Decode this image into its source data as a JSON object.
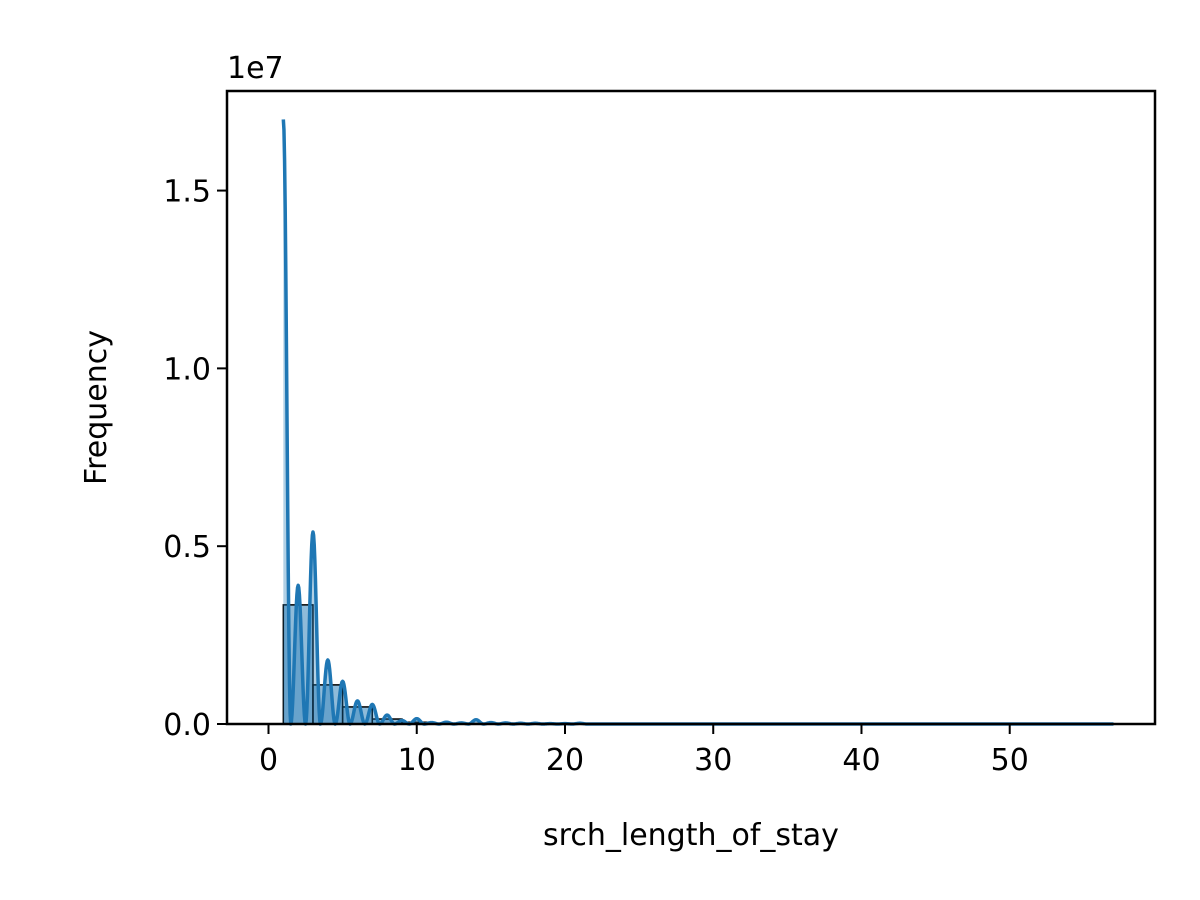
{
  "chart_data": {
    "type": "bar",
    "title": "",
    "xlabel": "srch_length_of_stay",
    "ylabel": "Frequency",
    "y_offset_text": "1e7",
    "xlim": [
      -2.8,
      59.8
    ],
    "ylim": [
      0,
      1.78
    ],
    "y_scale_factor": 10000000,
    "x_ticks": [
      0,
      10,
      20,
      30,
      40,
      50
    ],
    "x_tick_labels": [
      "0",
      "10",
      "20",
      "30",
      "40",
      "50"
    ],
    "y_ticks": [
      0.0,
      0.5,
      1.0,
      1.5
    ],
    "y_tick_labels": [
      "0.0",
      "0.5",
      "1.0",
      "1.5"
    ],
    "grid": false,
    "legend": "none",
    "colors": {
      "bar_fill": "#1f77b4",
      "bar_edge": "#000000",
      "kde_line": "#1f77b4"
    },
    "histogram": {
      "bin_edges": [
        1,
        3,
        5,
        7,
        9,
        11,
        13,
        15,
        17,
        19,
        21,
        23,
        25,
        27,
        29,
        31,
        33,
        35,
        37,
        39,
        41,
        43,
        45,
        47,
        49,
        51,
        53,
        55,
        57
      ],
      "values": [
        0.335,
        0.11,
        0.048,
        0.014,
        0.005,
        0.002,
        0.0015,
        0.001,
        0.0008,
        0.0006,
        0.0005,
        0.0004,
        0.0003,
        0.0003,
        0.0002,
        0.0002,
        0.0002,
        0.0002,
        0.0001,
        0.0001,
        0.0001,
        0.0001,
        0.0001,
        0.0001,
        0.0001,
        0.0001,
        0.0001,
        0.0001
      ]
    },
    "kde_peaks": {
      "x": [
        1,
        2,
        3,
        4,
        5,
        6,
        7,
        8,
        9,
        10,
        11,
        12,
        13,
        14,
        15,
        16,
        17,
        18,
        19,
        20,
        21
      ],
      "values": [
        1.7,
        0.39,
        0.54,
        0.18,
        0.12,
        0.065,
        0.055,
        0.025,
        0.01,
        0.015,
        0.004,
        0.005,
        0.003,
        0.012,
        0.004,
        0.003,
        0.002,
        0.002,
        0.001,
        0.001,
        0.002
      ]
    },
    "kde_x_max": 57
  }
}
